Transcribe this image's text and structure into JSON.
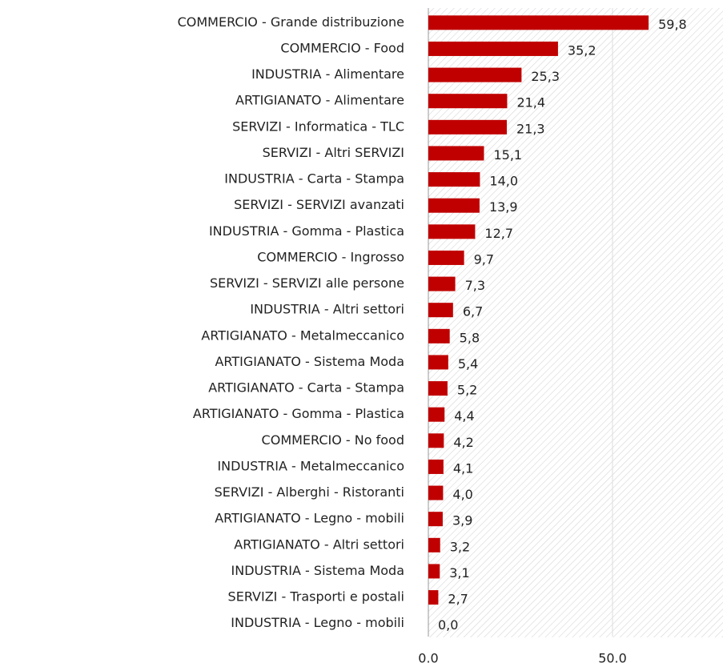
{
  "chart_data": {
    "type": "bar",
    "orientation": "horizontal",
    "categories": [
      "COMMERCIO - Grande distribuzione",
      "COMMERCIO - Food",
      "INDUSTRIA - Alimentare",
      "ARTIGIANATO - Alimentare",
      "SERVIZI - Informatica - TLC",
      "SERVIZI - Altri SERVIZI",
      "INDUSTRIA - Carta - Stampa",
      "SERVIZI - SERVIZI avanzati",
      "INDUSTRIA - Gomma - Plastica",
      "COMMERCIO - Ingrosso",
      "SERVIZI - SERVIZI alle persone",
      "INDUSTRIA - Altri settori",
      "ARTIGIANATO - Metalmeccanico",
      "ARTIGIANATO - Sistema Moda",
      "ARTIGIANATO - Carta - Stampa",
      "ARTIGIANATO - Gomma - Plastica",
      "COMMERCIO - No food",
      "INDUSTRIA - Metalmeccanico",
      "SERVIZI - Alberghi - Ristoranti",
      "ARTIGIANATO - Legno - mobili",
      "ARTIGIANATO - Altri settori",
      "INDUSTRIA - Sistema Moda",
      "SERVIZI - Trasporti e postali",
      "INDUSTRIA - Legno - mobili"
    ],
    "values": [
      59.8,
      35.2,
      25.3,
      21.4,
      21.3,
      15.1,
      14.0,
      13.9,
      12.7,
      9.7,
      7.3,
      6.7,
      5.8,
      5.4,
      5.2,
      4.4,
      4.2,
      4.1,
      4.0,
      3.9,
      3.2,
      3.1,
      2.7,
      0.0
    ],
    "value_labels": [
      "59,8",
      "35,2",
      "25,3",
      "21,4",
      "21,3",
      "15,1",
      "14,0",
      "13,9",
      "12,7",
      "9,7",
      "7,3",
      "6,7",
      "5,8",
      "5,4",
      "5,2",
      "4,4",
      "4,2",
      "4,1",
      "4,0",
      "3,9",
      "3,2",
      "3,1",
      "2,7",
      "0,0"
    ],
    "color": "#c00000",
    "xlim": [
      0,
      80
    ],
    "xticks": [
      {
        "value": 0,
        "label": "0.0"
      },
      {
        "value": 50,
        "label": "50.0"
      }
    ],
    "grid": true
  }
}
